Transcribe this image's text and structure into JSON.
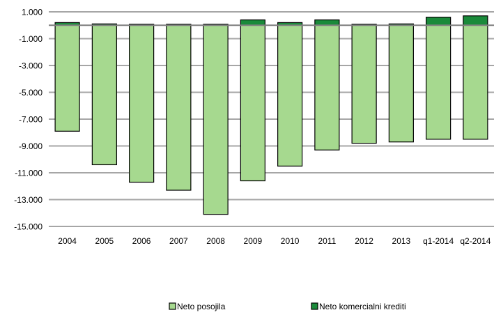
{
  "chart_data": {
    "type": "bar",
    "stacked": true,
    "categories": [
      "2004",
      "2005",
      "2006",
      "2007",
      "2008",
      "2009",
      "2010",
      "2011",
      "2012",
      "2013",
      "q1-2014",
      "q2-2014"
    ],
    "series": [
      {
        "name": "Neto posojila",
        "color": "#a6d98f",
        "values": [
          -7900,
          -10400,
          -11700,
          -12300,
          -14100,
          -11600,
          -10500,
          -9300,
          -8800,
          -8700,
          -8500,
          -8500
        ]
      },
      {
        "name": "Neto komercialni krediti",
        "color": "#1a8a3a",
        "values": [
          200,
          100,
          0,
          0,
          0,
          400,
          200,
          400,
          0,
          100,
          600,
          700
        ]
      }
    ],
    "y_ticks": [
      "1.000",
      "-1.000",
      "-3.000",
      "-5.000",
      "-7.000",
      "-9.000",
      "-11.000",
      "-13.000",
      "-15.000"
    ],
    "ylim": [
      -15000,
      1000
    ],
    "grid": true,
    "legend_position": "bottom"
  }
}
